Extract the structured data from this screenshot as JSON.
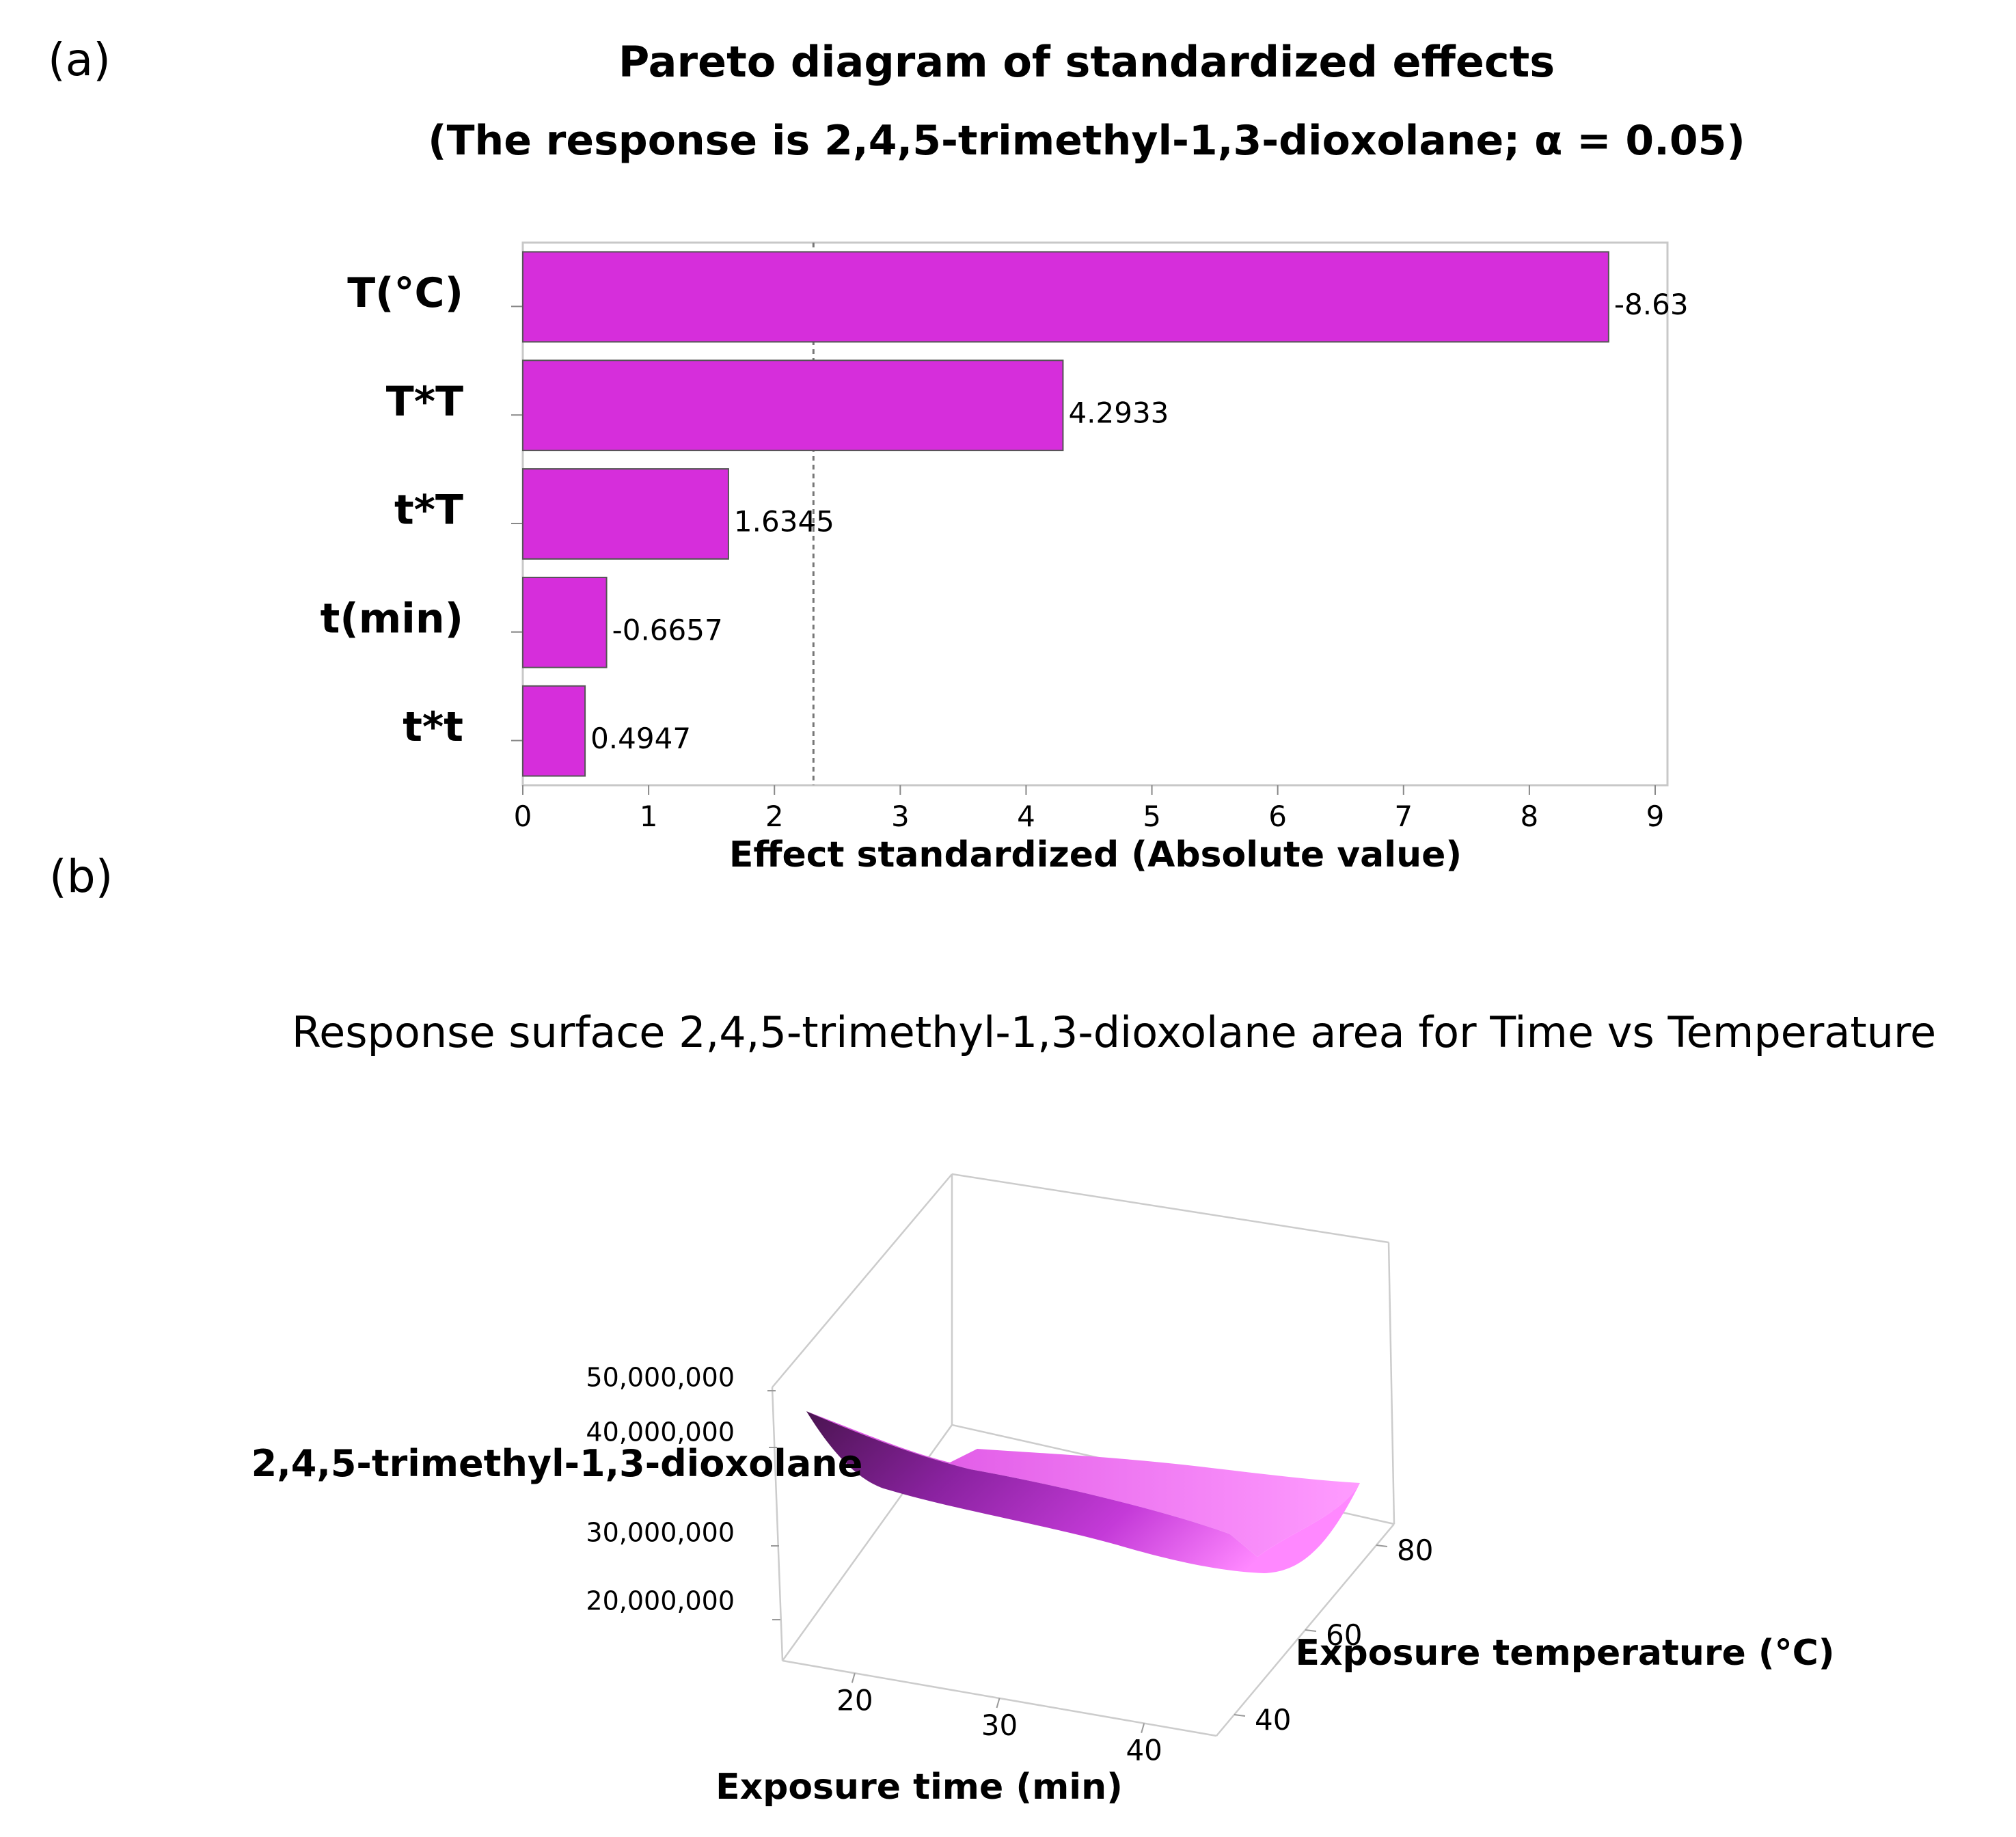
{
  "panel_a": {
    "label": "(a)",
    "chart_data": {
      "type": "bar",
      "orientation": "horizontal",
      "title": "Pareto diagram of standardized effects",
      "subtitle": "(The response is 2,4,5-trimethyl-1,3-dioxolane; α = 0.05)",
      "categories": [
        "T(°C)",
        "T*T",
        "t*T",
        "t(min)",
        "t*t"
      ],
      "values": [
        8.63,
        4.2933,
        1.6345,
        0.6657,
        0.4947
      ],
      "value_labels": [
        "-8.63",
        "4.2933",
        "1.6345",
        "-0.6657",
        "0.4947"
      ],
      "xlabel": "Effect standardized (Absolute value)",
      "xlim": [
        0,
        9
      ],
      "xticks": [
        "0",
        "1",
        "2",
        "3",
        "4",
        "5",
        "6",
        "7",
        "8",
        "9"
      ],
      "reference_line": 2.31,
      "bar_color": "#d62edb"
    }
  },
  "panel_b": {
    "label": "(b)",
    "chart_data": {
      "type": "surface",
      "title": "Response surface 2,4,5-trimethyl-1,3-dioxolane area for Time vs Temperature",
      "xlabel": "Exposure time (min)",
      "ylabel": "Exposure temperature (°C)",
      "zlabel": "2,4,5-trimethyl-1,3-dioxolane",
      "xticks": [
        "20",
        "30",
        "40"
      ],
      "yticks": [
        "40",
        "60",
        "80"
      ],
      "zticks": [
        "20,000,000",
        "30,000,000",
        "40,000,000",
        "50,000,000"
      ],
      "x_range": [
        15,
        45
      ],
      "y_range": [
        35,
        85
      ],
      "z_range": [
        15000000,
        50000000
      ],
      "colors": {
        "low": "#4a1450",
        "mid": "#b030c8",
        "high": "#ff88ff"
      }
    }
  }
}
